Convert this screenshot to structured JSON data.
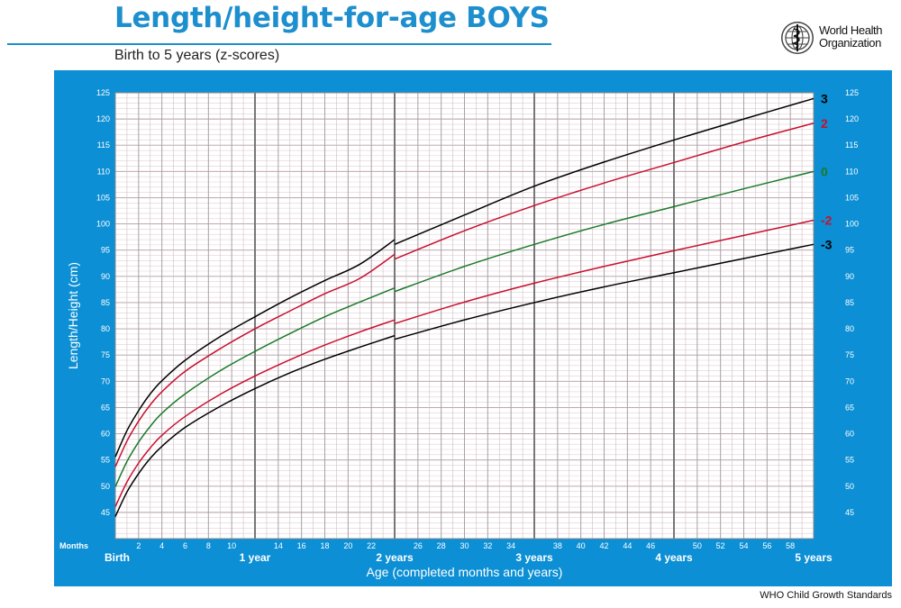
{
  "header": {
    "title": "Length/height-for-age BOYS",
    "subtitle": "Birth to 5 years (z-scores)"
  },
  "logo": {
    "line1": "World Health",
    "line2": "Organization",
    "icon": "who-emblem-icon"
  },
  "footer": {
    "text": "WHO Child Growth Standards"
  },
  "colors": {
    "brand": "#1e8fce",
    "panel": "#0c8fd4",
    "z3": "#000000",
    "z2": "#c8102e",
    "z0": "#1a7a2a"
  },
  "chart_data": {
    "type": "line",
    "title": "Length/height-for-age BOYS",
    "subtitle": "Birth to 5 years (z-scores)",
    "xlabel": "Age (completed months and years)",
    "ylabel": "Length/Height (cm)",
    "x_unit_label": "Months",
    "xlim": [
      0,
      60
    ],
    "ylim": [
      40,
      125
    ],
    "yticks": [
      45,
      50,
      55,
      60,
      65,
      70,
      75,
      80,
      85,
      90,
      95,
      100,
      105,
      110,
      115,
      120,
      125
    ],
    "month_ticks": [
      2,
      4,
      6,
      8,
      10,
      14,
      16,
      18,
      20,
      22,
      26,
      28,
      30,
      32,
      34,
      38,
      40,
      42,
      44,
      46,
      50,
      52,
      54,
      56,
      58
    ],
    "year_ticks": [
      {
        "x": 0,
        "label": "Birth"
      },
      {
        "x": 12,
        "label": "1 year"
      },
      {
        "x": 24,
        "label": "2 years"
      },
      {
        "x": 36,
        "label": "3 years"
      },
      {
        "x": 48,
        "label": "4 years"
      },
      {
        "x": 60,
        "label": "5 years"
      }
    ],
    "grid": true,
    "legend": "line-end labels on right",
    "break_at": 24,
    "x": [
      0,
      1,
      2,
      3,
      4,
      6,
      9,
      12,
      15,
      18,
      21,
      24,
      24,
      30,
      36,
      42,
      48,
      54,
      60
    ],
    "series": [
      {
        "name": "3",
        "label_color": "#000000",
        "values": [
          55.6,
          60.6,
          64.4,
          67.6,
          70.1,
          74.0,
          78.5,
          82.3,
          85.9,
          89.2,
          92.3,
          97.0,
          96.1,
          101.7,
          107.2,
          111.8,
          116.0,
          120.0,
          123.9
        ]
      },
      {
        "name": "2",
        "label_color": "#c8102e",
        "values": [
          53.7,
          58.6,
          62.4,
          65.5,
          68.0,
          71.9,
          76.2,
          80.0,
          83.4,
          86.7,
          89.6,
          94.2,
          93.3,
          98.7,
          103.5,
          107.8,
          111.7,
          115.6,
          119.2
        ]
      },
      {
        "name": "0",
        "label_color": "#1a7a2a",
        "values": [
          49.9,
          54.7,
          58.4,
          61.4,
          63.9,
          67.6,
          72.0,
          75.7,
          79.1,
          82.3,
          85.1,
          87.8,
          87.1,
          91.9,
          96.1,
          99.9,
          103.3,
          106.7,
          110.0
        ]
      },
      {
        "name": "-2",
        "label_color": "#c8102e",
        "values": [
          46.1,
          50.8,
          54.4,
          57.3,
          59.7,
          63.3,
          67.5,
          71.0,
          74.1,
          76.9,
          79.4,
          81.7,
          81.0,
          85.1,
          88.7,
          91.9,
          94.9,
          97.8,
          100.7
        ]
      },
      {
        "name": "-3",
        "label_color": "#000000",
        "values": [
          44.2,
          48.9,
          52.4,
          55.3,
          57.6,
          61.2,
          65.2,
          68.6,
          71.6,
          74.2,
          76.5,
          78.7,
          78.0,
          81.7,
          85.0,
          88.0,
          90.7,
          93.4,
          96.1
        ]
      }
    ]
  }
}
